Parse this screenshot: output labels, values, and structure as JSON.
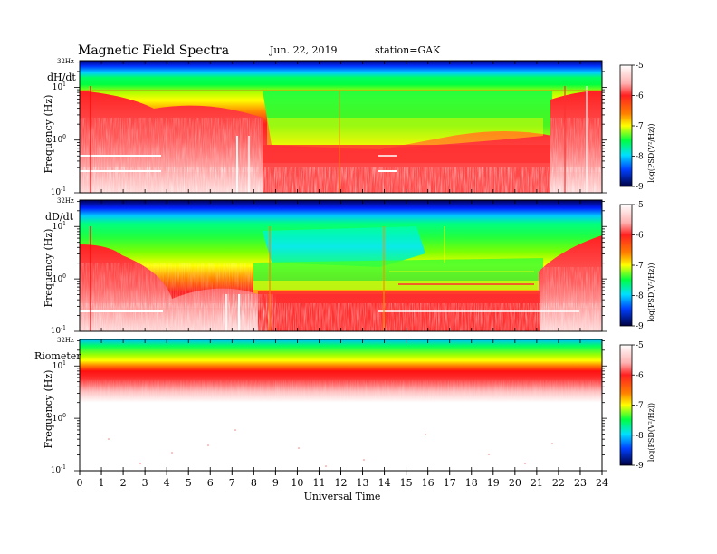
{
  "header": {
    "title": "Magnetic  Field  Spectra",
    "date": "Jun. 22, 2019",
    "station": "station=GAK"
  },
  "xaxis": {
    "label": "Universal  Time",
    "ticks": [
      "0",
      "1",
      "2",
      "3",
      "4",
      "5",
      "6",
      "7",
      "8",
      "9",
      "10",
      "11",
      "12",
      "13",
      "14",
      "15",
      "16",
      "17",
      "18",
      "19",
      "20",
      "21",
      "22",
      "23",
      "24"
    ]
  },
  "colorbar": {
    "label": "log(PSD(V²/Hz))",
    "ticks": [
      "-5",
      "-6",
      "-7",
      "-8",
      "-9"
    ],
    "colors": [
      "#ffffff",
      "#ff9a9a",
      "#ff1010",
      "#ffff00",
      "#00ff40",
      "#00e0ff",
      "#0050ff",
      "#000060"
    ]
  },
  "panels": [
    {
      "label": "dH/dt",
      "ylabel": "Frequency  (Hz)",
      "top_tick": "32Hz",
      "yticks": [
        {
          "base": "10",
          "exp": "1"
        },
        {
          "base": "10",
          "exp": "0"
        },
        {
          "base": "10",
          "exp": "-1"
        }
      ]
    },
    {
      "label": "dD/dt",
      "ylabel": "Frequency  (Hz)",
      "top_tick": "32Hz",
      "yticks": [
        {
          "base": "10",
          "exp": "1"
        },
        {
          "base": "10",
          "exp": "0"
        },
        {
          "base": "10",
          "exp": "-1"
        }
      ]
    },
    {
      "label": "Riometer",
      "ylabel": "Frequency  (Hz)",
      "top_tick": "32Hz",
      "yticks": [
        {
          "base": "10",
          "exp": "1"
        },
        {
          "base": "10",
          "exp": "0"
        },
        {
          "base": "10",
          "exp": "-1"
        }
      ]
    }
  ],
  "chart_data": [
    {
      "type": "heatmap",
      "title": "dH/dt",
      "x": {
        "label": "Universal  Time",
        "unit": "hours UT",
        "range": [
          0,
          24
        ]
      },
      "y": {
        "label": "Frequency  (Hz)",
        "scale": "log",
        "range": [
          0.1,
          32
        ]
      },
      "z": {
        "label": "log(PSD(V²/Hz))",
        "range": [
          -9,
          -5
        ]
      },
      "features": {
        "low_frequency_red_region_hours": [
          [
            0,
            8.3
          ],
          [
            21.5,
            24
          ]
        ],
        "green_band_Hz": [
          1.5,
          8
        ],
        "mid_day_red_floor_Hz": 0.5
      }
    },
    {
      "type": "heatmap",
      "title": "dD/dt",
      "x": {
        "label": "Universal  Time",
        "unit": "hours UT",
        "range": [
          0,
          24
        ]
      },
      "y": {
        "label": "Frequency  (Hz)",
        "scale": "log",
        "range": [
          0.1,
          32
        ]
      },
      "z": {
        "label": "log(PSD(V²/Hz))",
        "range": [
          -9,
          -5
        ]
      },
      "features": {
        "low_frequency_red_region_hours": [
          [
            0,
            8.5
          ],
          [
            21,
            24
          ]
        ],
        "cyan_region_hours": [
          8.5,
          14
        ],
        "mid_day_red_floor_Hz": 0.5
      }
    },
    {
      "type": "heatmap",
      "title": "Riometer",
      "x": {
        "label": "Universal  Time",
        "unit": "hours UT",
        "range": [
          0,
          24
        ]
      },
      "y": {
        "label": "Frequency  (Hz)",
        "scale": "log",
        "range": [
          0.1,
          32
        ]
      },
      "z": {
        "label": "log(PSD(V²/Hz))",
        "range": [
          -9,
          -5
        ]
      },
      "features": {
        "red_band_Hz": [
          4,
          12
        ],
        "white_below_Hz": 4
      }
    }
  ]
}
